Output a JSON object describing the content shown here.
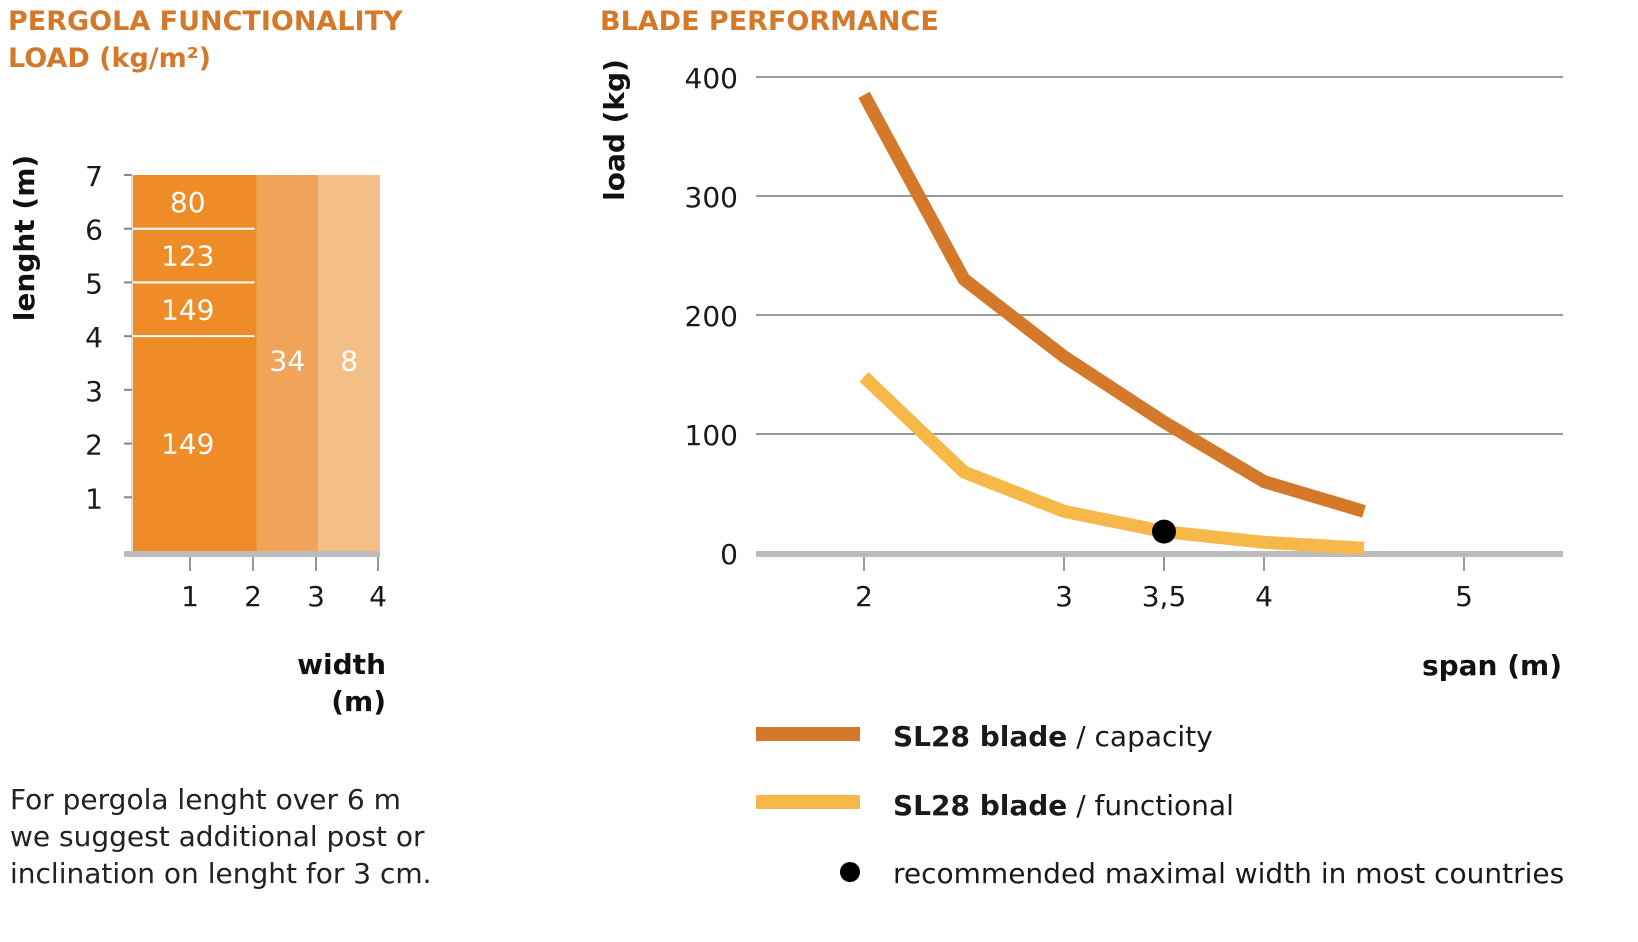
{
  "note": {
    "line1": "For pergola lenght over 6 m",
    "line2": "we suggest additional post or",
    "line3": "inclination on lenght for 3 cm."
  },
  "colors": {
    "bar_dark": "#ee8c27",
    "bar_mid": "#f0a359",
    "bar_light": "#f4be87",
    "capacity_line": "#d4782a",
    "functional_line": "#f7b84a",
    "title": "#d4782a",
    "grid": "#999999",
    "baseline": "#bcbcbc"
  },
  "chart_data": [
    {
      "type": "table",
      "title_line1": "PERGOLA FUNCTIONALITY",
      "title_line2": "LOAD (kg/m²)",
      "ylabel": "lenght (m)",
      "xlabel_line1": "width",
      "xlabel_line2": "(m)",
      "xlim": [
        0,
        4
      ],
      "ylim": [
        0,
        7
      ],
      "x_ticks": [
        "1",
        "2",
        "3",
        "4"
      ],
      "y_ticks": [
        "1",
        "2",
        "3",
        "4",
        "5",
        "6",
        "7"
      ],
      "cells": [
        {
          "x": [
            0,
            2
          ],
          "y": [
            6,
            7
          ],
          "value": "80",
          "shade": "bar_dark"
        },
        {
          "x": [
            0,
            2
          ],
          "y": [
            5,
            6
          ],
          "value": "123",
          "shade": "bar_dark"
        },
        {
          "x": [
            0,
            2
          ],
          "y": [
            4,
            5
          ],
          "value": "149",
          "shade": "bar_dark"
        },
        {
          "x": [
            0,
            2
          ],
          "y": [
            0,
            4
          ],
          "value": "149",
          "shade": "bar_dark"
        },
        {
          "x": [
            2,
            3
          ],
          "y": [
            0,
            7
          ],
          "value": "34",
          "shade": "bar_mid"
        },
        {
          "x": [
            3,
            4
          ],
          "y": [
            0,
            7
          ],
          "value": "8",
          "shade": "bar_light"
        }
      ]
    },
    {
      "type": "line",
      "title": "BLADE PERFORMANCE",
      "ylabel": "load (kg)",
      "xlabel": "span (m)",
      "xlim": [
        1.5,
        5.5
      ],
      "ylim": [
        0,
        400
      ],
      "x_ticks": [
        {
          "value": 2,
          "label": "2"
        },
        {
          "value": 3,
          "label": "3"
        },
        {
          "value": 3.5,
          "label": "3,5"
        },
        {
          "value": 4,
          "label": "4"
        },
        {
          "value": 5,
          "label": "5"
        }
      ],
      "y_ticks": [
        {
          "value": 0,
          "label": "0"
        },
        {
          "value": 100,
          "label": "100"
        },
        {
          "value": 200,
          "label": "200"
        },
        {
          "value": 300,
          "label": "300"
        },
        {
          "value": 400,
          "label": "400"
        }
      ],
      "grid": true,
      "series": [
        {
          "name": "capacity",
          "legend_bold": "SL28 blade",
          "legend_rest": " / capacity",
          "color_key": "capacity_line",
          "x": [
            2,
            2.5,
            3,
            3.5,
            4,
            4.5
          ],
          "y": [
            385,
            230,
            165,
            110,
            60,
            35
          ]
        },
        {
          "name": "functional",
          "legend_bold": "SL28 blade",
          "legend_rest": " / functional",
          "color_key": "functional_line",
          "x": [
            2,
            2.5,
            3,
            3.5,
            4,
            4.5
          ],
          "y": [
            148,
            68,
            35,
            18,
            9,
            4
          ]
        }
      ],
      "marker": {
        "x": 3.5,
        "y": 18,
        "legend": "recommended maximal width in most countries"
      }
    }
  ]
}
